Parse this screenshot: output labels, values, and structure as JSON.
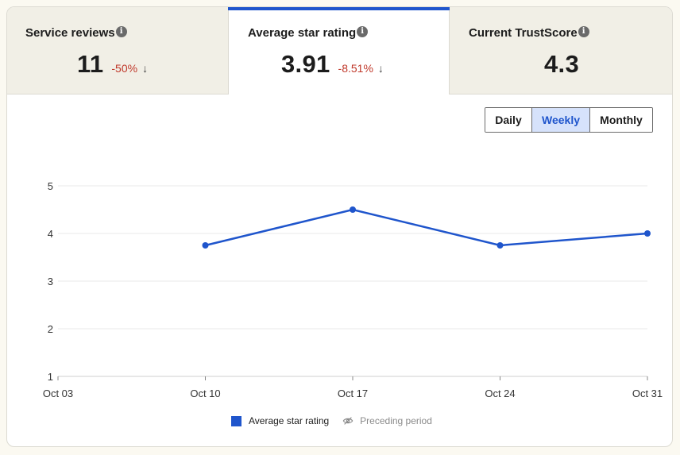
{
  "tabs": [
    {
      "title": "Service reviews",
      "value": "11",
      "delta": "-50%",
      "arrow": "↓"
    },
    {
      "title": "Average star rating",
      "value": "3.91",
      "delta": "-8.51%",
      "arrow": "↓",
      "active": true
    },
    {
      "title": "Current TrustScore",
      "value": "4.3"
    }
  ],
  "info_glyph": "i",
  "period": {
    "daily": "Daily",
    "weekly": "Weekly",
    "monthly": "Monthly",
    "selected": "Weekly"
  },
  "colors": {
    "accent": "#1f55cc",
    "negative": "#c0392b"
  },
  "chart_data": {
    "type": "line",
    "x": [
      "Oct 03",
      "Oct 10",
      "Oct 17",
      "Oct 24",
      "Oct 31"
    ],
    "y_ticks": [
      1,
      2,
      3,
      4,
      5
    ],
    "ylim": [
      1,
      5
    ],
    "series": [
      {
        "name": "Average star rating",
        "values": [
          null,
          3.75,
          4.5,
          3.75,
          4.0
        ]
      }
    ],
    "legend": [
      {
        "label": "Average star rating",
        "active": true
      },
      {
        "label": "Preceding period",
        "active": false
      }
    ],
    "grid": true,
    "legend_placement": "bottom"
  }
}
